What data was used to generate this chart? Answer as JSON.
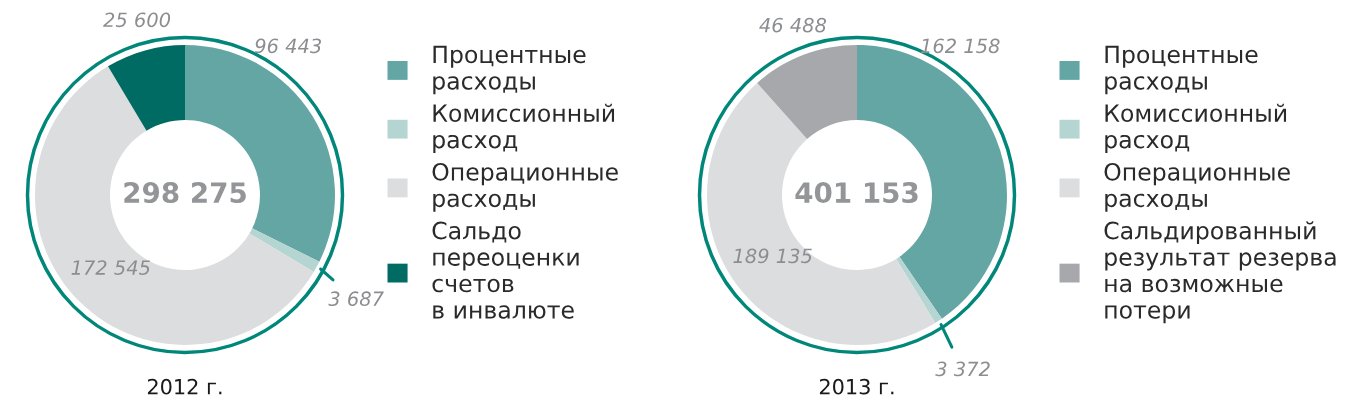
{
  "chart_data": [
    {
      "type": "donut",
      "title": "2012 г.",
      "categories": [
        "Процентные\nрасходы",
        "Комиссионный\nрасход",
        "Операционные\nрасходы",
        "Сальдо\nпереоценки\nсчетов\nв инвалюте"
      ],
      "values": [
        96443,
        3687,
        172545,
        25600
      ],
      "colors": [
        "#63a6a4",
        "#b5d5d3",
        "#dcdddf",
        "#006b63"
      ],
      "value_labels": [
        "96 443",
        "3 687",
        "172 545",
        "25 600"
      ],
      "annotations": [
        "298 275"
      ],
      "legend": "right"
    },
    {
      "type": "donut",
      "title": "2013 г.",
      "categories": [
        "Процентные\nрасходы",
        "Комиссионный\nрасход",
        "Операционные\nрасходы",
        "Сальдированный\nрезультат резерва\nна возможные\nпотери"
      ],
      "values": [
        162158,
        3372,
        189135,
        46488
      ],
      "colors": [
        "#63a6a4",
        "#b5d5d3",
        "#dcdddf",
        "#a7a8ac"
      ],
      "value_labels": [
        "162 158",
        "3 372",
        "189 135",
        "46 488"
      ],
      "annotations": [
        "401 153"
      ],
      "legend": "right"
    }
  ]
}
